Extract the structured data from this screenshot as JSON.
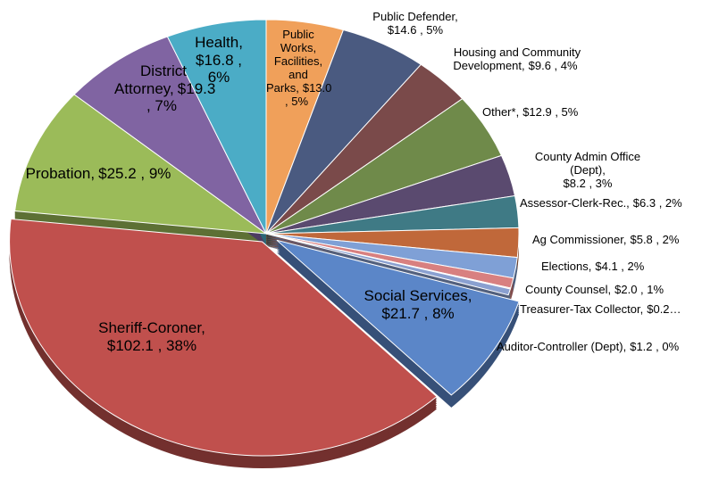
{
  "chart_data": {
    "type": "pie",
    "categories": [
      "Public Works, Facilities, and Parks,",
      "Public Defender,",
      "Housing and Community Development,",
      "Other*,",
      "County Admin Office (Dept),",
      "Assessor-Clerk-Rec.,",
      "Ag Commissioner,",
      "Elections,",
      "County Counsel,",
      "Treasurer-Tax Collector,",
      "Auditor-Controller (Dept),",
      "Social Services,",
      "Sheriff-Coroner,",
      "Probation,",
      "District Attorney,",
      "Health,"
    ],
    "values": [
      13.0,
      14.6,
      9.6,
      12.9,
      8.2,
      6.3,
      5.8,
      4.1,
      2.0,
      0.2,
      1.2,
      21.7,
      102.1,
      25.2,
      19.3,
      16.8
    ],
    "value_labels": [
      "$13.0 , 5%",
      "$14.6 , 5%",
      "$9.6 , 4%",
      "$12.9 , 5%",
      "$8.2 , 3%",
      "$6.3 , 2%",
      "$5.8 , 2%",
      "$4.1 , 2%",
      "$2.0 , 1%",
      "$0.2…",
      "$1.2 , 0%",
      "$21.7 , 8%",
      "$102.1 , 38%",
      "$25.2 , 9%",
      "$19.3 , 7%",
      "$16.8 , 6%"
    ],
    "colors": [
      "#f0a05a",
      "#4a5a80",
      "#7a4a4a",
      "#6f8a4a",
      "#5a4a6f",
      "#3f7a85",
      "#c0683a",
      "#7fa0d6",
      "#d88080",
      "#f2b58c",
      "#8aa0d0",
      "#5b86c8",
      "#c0504d",
      "#9bbb59",
      "#8064a2",
      "#4bacc6"
    ]
  }
}
